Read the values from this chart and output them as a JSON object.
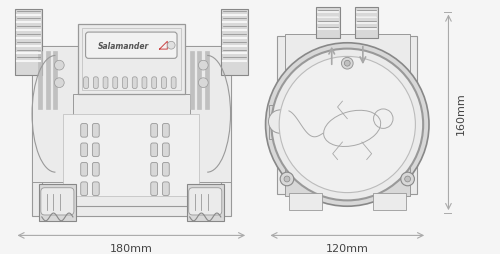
{
  "bg_color": "#f5f5f5",
  "body_light": "#ebebeb",
  "body_mid": "#d8d8d8",
  "body_dark": "#c0c0c0",
  "body_darker": "#a8a8a8",
  "outline_color": "#999999",
  "outline_thin": "#bbbbbb",
  "outline_dark": "#888888",
  "dim_color": "#aaaaaa",
  "text_color": "#555555",
  "dim_label_180": "180mm",
  "dim_label_120": "120mm",
  "dim_label_160": "160mm",
  "salamander_text": "Salamander",
  "font_size_dim": 8,
  "font_size_brand": 5.5
}
